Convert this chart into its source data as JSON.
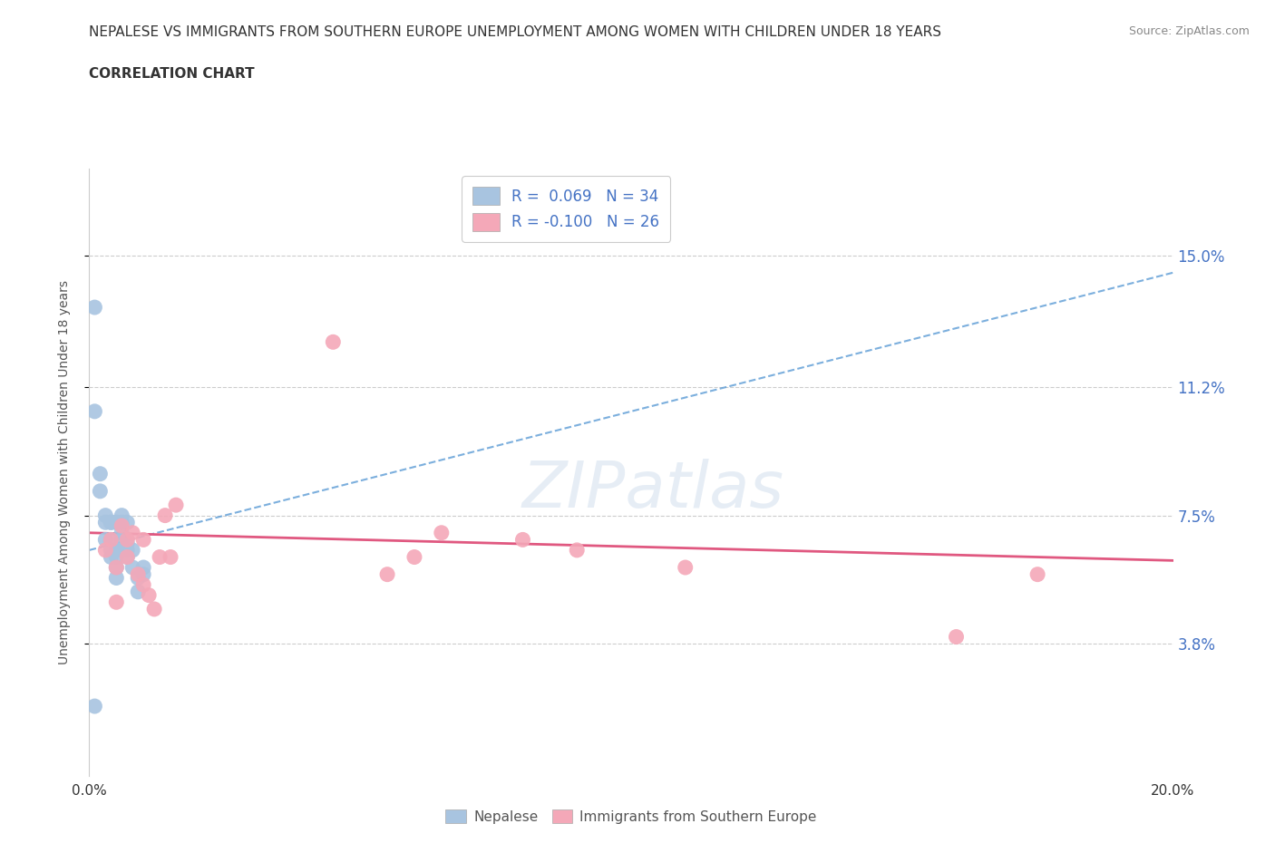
{
  "title_line1": "NEPALESE VS IMMIGRANTS FROM SOUTHERN EUROPE UNEMPLOYMENT AMONG WOMEN WITH CHILDREN UNDER 18 YEARS",
  "title_line2": "CORRELATION CHART",
  "source": "Source: ZipAtlas.com",
  "ylabel": "Unemployment Among Women with Children Under 18 years",
  "xlim": [
    0.0,
    0.2
  ],
  "ylim": [
    0.0,
    0.175
  ],
  "yticks": [
    0.038,
    0.075,
    0.112,
    0.15
  ],
  "ytick_labels": [
    "3.8%",
    "7.5%",
    "11.2%",
    "15.0%"
  ],
  "xticks": [
    0.0,
    0.04,
    0.08,
    0.12,
    0.16,
    0.2
  ],
  "xtick_labels": [
    "0.0%",
    "",
    "",
    "",
    "",
    "20.0%"
  ],
  "nepalese_R": 0.069,
  "nepalese_N": 34,
  "southern_europe_R": -0.1,
  "southern_europe_N": 26,
  "nepalese_color": "#a8c4e0",
  "southern_europe_color": "#f4a8b8",
  "nepalese_line_color": "#5b9bd5",
  "southern_europe_line_color": "#e05880",
  "background_color": "#ffffff",
  "watermark": "ZIPatlas",
  "nepalese_x": [
    0.001,
    0.001,
    0.001,
    0.002,
    0.002,
    0.003,
    0.003,
    0.003,
    0.004,
    0.004,
    0.004,
    0.004,
    0.004,
    0.005,
    0.005,
    0.005,
    0.005,
    0.005,
    0.005,
    0.006,
    0.006,
    0.006,
    0.006,
    0.006,
    0.007,
    0.007,
    0.007,
    0.007,
    0.008,
    0.008,
    0.009,
    0.009,
    0.01,
    0.01
  ],
  "nepalese_y": [
    0.135,
    0.105,
    0.02,
    0.087,
    0.082,
    0.075,
    0.073,
    0.068,
    0.073,
    0.073,
    0.068,
    0.065,
    0.063,
    0.073,
    0.073,
    0.065,
    0.063,
    0.06,
    0.057,
    0.075,
    0.073,
    0.07,
    0.068,
    0.065,
    0.073,
    0.067,
    0.065,
    0.063,
    0.065,
    0.06,
    0.057,
    0.053,
    0.06,
    0.058
  ],
  "southern_europe_x": [
    0.003,
    0.004,
    0.005,
    0.005,
    0.006,
    0.007,
    0.007,
    0.008,
    0.009,
    0.01,
    0.01,
    0.011,
    0.012,
    0.013,
    0.014,
    0.015,
    0.016,
    0.045,
    0.055,
    0.06,
    0.065,
    0.08,
    0.09,
    0.11,
    0.16,
    0.175
  ],
  "southern_europe_y": [
    0.065,
    0.068,
    0.06,
    0.05,
    0.072,
    0.063,
    0.068,
    0.07,
    0.058,
    0.068,
    0.055,
    0.052,
    0.048,
    0.063,
    0.075,
    0.063,
    0.078,
    0.125,
    0.058,
    0.063,
    0.07,
    0.068,
    0.065,
    0.06,
    0.04,
    0.058
  ]
}
